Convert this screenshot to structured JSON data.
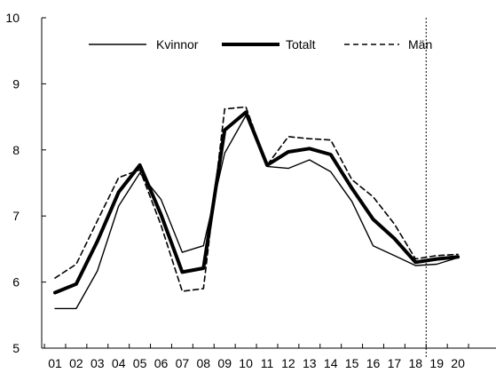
{
  "chart_data": {
    "type": "line",
    "x": [
      "01",
      "02",
      "03",
      "04",
      "05",
      "06",
      "07",
      "08",
      "09",
      "10",
      "11",
      "12",
      "13",
      "14",
      "15",
      "16",
      "17",
      "18",
      "19",
      "20"
    ],
    "ylim": [
      5,
      10
    ],
    "yticks": [
      "5",
      "6",
      "7",
      "8",
      "9",
      "10"
    ],
    "grid": false,
    "legend_position": "top",
    "forecast_divider_after": "18",
    "series": [
      {
        "name": "Kvinnor",
        "style": "thin",
        "color": "#000000",
        "values": [
          5.6,
          5.6,
          6.17,
          7.15,
          7.65,
          7.25,
          6.45,
          6.55,
          7.95,
          8.52,
          7.75,
          7.72,
          7.85,
          7.67,
          7.22,
          6.55,
          6.4,
          6.25,
          6.27,
          6.37
        ]
      },
      {
        "name": "Totalt",
        "style": "thick",
        "color": "#000000",
        "values": [
          5.84,
          5.97,
          6.62,
          7.36,
          7.77,
          7.02,
          6.15,
          6.21,
          8.3,
          8.57,
          7.77,
          7.97,
          8.02,
          7.93,
          7.42,
          6.95,
          6.66,
          6.3,
          6.35,
          6.38
        ]
      },
      {
        "name": "Män",
        "style": "dashed",
        "color": "#000000",
        "values": [
          6.06,
          6.27,
          6.93,
          7.58,
          7.7,
          6.86,
          5.86,
          5.9,
          8.62,
          8.65,
          7.77,
          8.2,
          8.17,
          8.15,
          7.55,
          7.29,
          6.88,
          6.35,
          6.4,
          6.42
        ]
      }
    ]
  }
}
